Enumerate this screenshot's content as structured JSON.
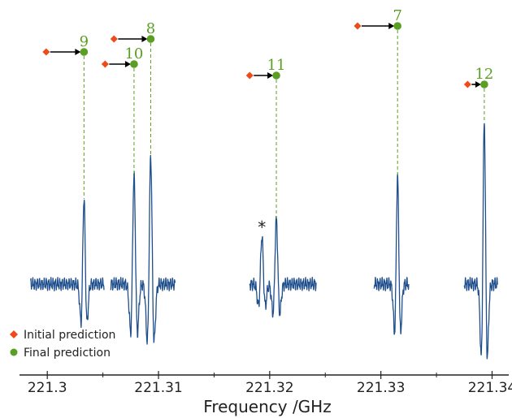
{
  "chart_data": {
    "type": "line",
    "xlabel": "Frequency /GHz",
    "xlim": [
      221.2975,
      221.3415
    ],
    "x_ticks": [
      221.3,
      221.31,
      221.32,
      221.33,
      221.34
    ],
    "x_tick_labels": [
      "221.3",
      "221.31",
      "221.32",
      "221.33",
      "221.34"
    ],
    "colors": {
      "spectrum": "#1f4e8c",
      "initial": "#ee4a1c",
      "final": "#5a9e23",
      "arrow": "#000000",
      "guide": "#5a9e23"
    },
    "legend": {
      "placement": "bottom-left",
      "entries": [
        {
          "label": "Initial prediction",
          "marker": "diamond"
        },
        {
          "label": "Final prediction",
          "marker": "circle"
        }
      ]
    },
    "predictions": [
      {
        "label": "9",
        "initial": 221.2999,
        "final": 221.3033
      },
      {
        "label": "8",
        "initial": 221.306,
        "final": 221.3093
      },
      {
        "label": "10",
        "initial": 221.3052,
        "final": 221.3078
      },
      {
        "label": "11",
        "initial": 221.3182,
        "final": 221.3206
      },
      {
        "label": "7",
        "initial": 221.3279,
        "final": 221.3315
      },
      {
        "label": "12",
        "initial": 221.3378,
        "final": 221.3393
      }
    ],
    "spectrum_segments": [
      {
        "x_start": 221.2985,
        "x_end": 221.3051,
        "lines": [
          {
            "center": 221.3033,
            "height": 1.0,
            "width": 0.00016
          }
        ]
      },
      {
        "x_start": 221.3057,
        "x_end": 221.3115,
        "lines": [
          {
            "center": 221.3078,
            "height": 1.26,
            "width": 0.00018
          },
          {
            "center": 221.3093,
            "height": 1.49,
            "width": 0.00018
          }
        ]
      },
      {
        "x_start": 221.3182,
        "x_end": 221.3242,
        "lines": [
          {
            "center": 221.3193,
            "height": 0.56,
            "width": 0.00018
          },
          {
            "center": 221.3206,
            "height": 0.76,
            "width": 0.00018
          }
        ]
      },
      {
        "x_start": 221.3294,
        "x_end": 221.3325,
        "lines": [
          {
            "center": 221.3315,
            "height": 1.25,
            "width": 0.00016
          }
        ]
      },
      {
        "x_start": 221.3375,
        "x_end": 221.3405,
        "lines": [
          {
            "center": 221.3393,
            "height": 1.9,
            "width": 0.00016
          }
        ]
      }
    ],
    "annotations": [
      {
        "text": "*",
        "x": 221.3193
      }
    ]
  }
}
